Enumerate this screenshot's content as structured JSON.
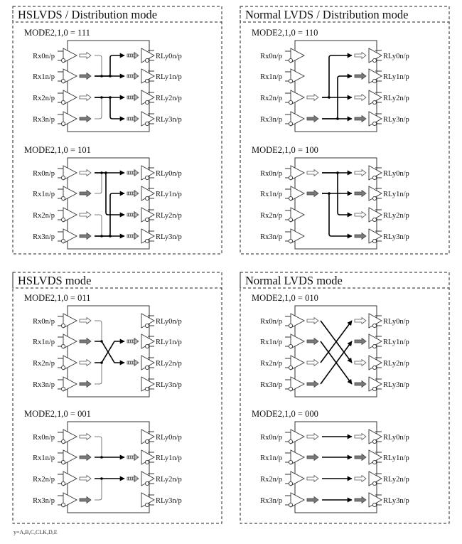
{
  "input_labels": [
    "Rx0n/p",
    "Rx1n/p",
    "Rx2n/p",
    "Rx3n/p"
  ],
  "output_labels": [
    "RLy0n/p",
    "RLy1n/p",
    "RLy2n/p",
    "RLy3n/p"
  ],
  "footnote": "y=A,B,C,CLK,D,E",
  "arrow_styles": {
    "h": "hollow",
    "g": "gray-filled",
    "d": "hatched"
  },
  "panels": [
    {
      "title": "HSLVDS / Distribution mode",
      "diagrams": [
        {
          "mode_label": "MODE2,1,0 = 111",
          "in_arrows": [
            "h",
            "g",
            "h",
            "g"
          ],
          "out_arrows": [
            "d",
            "d",
            "d",
            "d"
          ],
          "routes": [
            {
              "from": 0,
              "to": 1,
              "lane": 0,
              "thin": true
            },
            {
              "from": 3,
              "to": 2,
              "lane": 0,
              "thin": true
            },
            {
              "from": 1,
              "to": 1
            },
            {
              "from": 2,
              "to": 2
            },
            {
              "from": 1,
              "to": 0,
              "lane": 2
            },
            {
              "from": 2,
              "to": 3,
              "lane": 2
            }
          ]
        },
        {
          "mode_label": "MODE2,1,0 = 101",
          "in_arrows": [
            "h",
            "g",
            "h",
            "g"
          ],
          "out_arrows": [
            "d",
            "d",
            "d",
            "d"
          ],
          "routes": [
            {
              "from": 1,
              "to": 0,
              "lane": 0,
              "thin": true
            },
            {
              "from": 2,
              "to": 3,
              "lane": 0,
              "thin": true
            },
            {
              "from": 0,
              "to": 0
            },
            {
              "from": 3,
              "to": 3
            },
            {
              "from": 0,
              "to": 2,
              "lane": 1
            },
            {
              "from": 3,
              "to": 1,
              "lane": 2
            }
          ]
        }
      ]
    },
    {
      "title": "Normal LVDS / Distribution mode",
      "diagrams": [
        {
          "mode_label": "MODE2,1,0 = 110",
          "in_arrows": [
            null,
            null,
            "h",
            "g"
          ],
          "out_arrows": [
            "h",
            "g",
            "h",
            "g"
          ],
          "routes": [
            {
              "from": 2,
              "to": 2
            },
            {
              "from": 3,
              "to": 3
            },
            {
              "from": 2,
              "to": 0,
              "lane": 0
            },
            {
              "from": 3,
              "to": 1,
              "lane": 2
            }
          ]
        },
        {
          "mode_label": "MODE2,1,0 = 100",
          "in_arrows": [
            "h",
            "g",
            null,
            null
          ],
          "out_arrows": [
            "h",
            "g",
            "h",
            "g"
          ],
          "routes": [
            {
              "from": 0,
              "to": 0
            },
            {
              "from": 1,
              "to": 1
            },
            {
              "from": 0,
              "to": 2,
              "lane": 2
            },
            {
              "from": 1,
              "to": 3,
              "lane": 0
            }
          ]
        }
      ]
    },
    {
      "title": "HSLVDS mode",
      "diagrams": [
        {
          "mode_label": "MODE2,1,0 = 011",
          "in_arrows": [
            "h",
            "g",
            "h",
            "g"
          ],
          "out_arrows": [
            null,
            "d",
            "d",
            null
          ],
          "routes": [
            {
              "from": 0,
              "to": 1,
              "lane": 0,
              "thin": true
            },
            {
              "from": 3,
              "to": 2,
              "lane": 0,
              "thin": true
            },
            {
              "from": 1,
              "to": 2,
              "diag": true,
              "lane": 0
            },
            {
              "from": 2,
              "to": 1,
              "diag": true,
              "lane": 0
            }
          ]
        },
        {
          "mode_label": "MODE2,1,0 = 001",
          "in_arrows": [
            "h",
            "g",
            "h",
            "g"
          ],
          "out_arrows": [
            null,
            "d",
            "d",
            null
          ],
          "routes": [
            {
              "from": 0,
              "to": 1,
              "lane": 0,
              "thin": true
            },
            {
              "from": 3,
              "to": 2,
              "lane": 0,
              "thin": true
            },
            {
              "from": 1,
              "to": 1
            },
            {
              "from": 2,
              "to": 2
            }
          ]
        }
      ]
    },
    {
      "title": "Normal LVDS mode",
      "diagrams": [
        {
          "mode_label": "MODE2,1,0 = 010",
          "in_arrows": [
            "h",
            "g",
            "h",
            "g"
          ],
          "out_arrows": [
            "h",
            "g",
            "h",
            "g"
          ],
          "routes": [
            {
              "from": 0,
              "to": 2,
              "diag": true
            },
            {
              "from": 1,
              "to": 3,
              "diag": true
            },
            {
              "from": 2,
              "to": 0,
              "diag": true
            },
            {
              "from": 3,
              "to": 1,
              "diag": true
            }
          ]
        },
        {
          "mode_label": "MODE2,1,0 = 000",
          "in_arrows": [
            "h",
            "g",
            "h",
            "g"
          ],
          "out_arrows": [
            "h",
            "g",
            "h",
            "g"
          ],
          "routes": [
            {
              "from": 0,
              "to": 0
            },
            {
              "from": 1,
              "to": 1
            },
            {
              "from": 2,
              "to": 2
            },
            {
              "from": 3,
              "to": 3
            }
          ]
        }
      ]
    }
  ]
}
